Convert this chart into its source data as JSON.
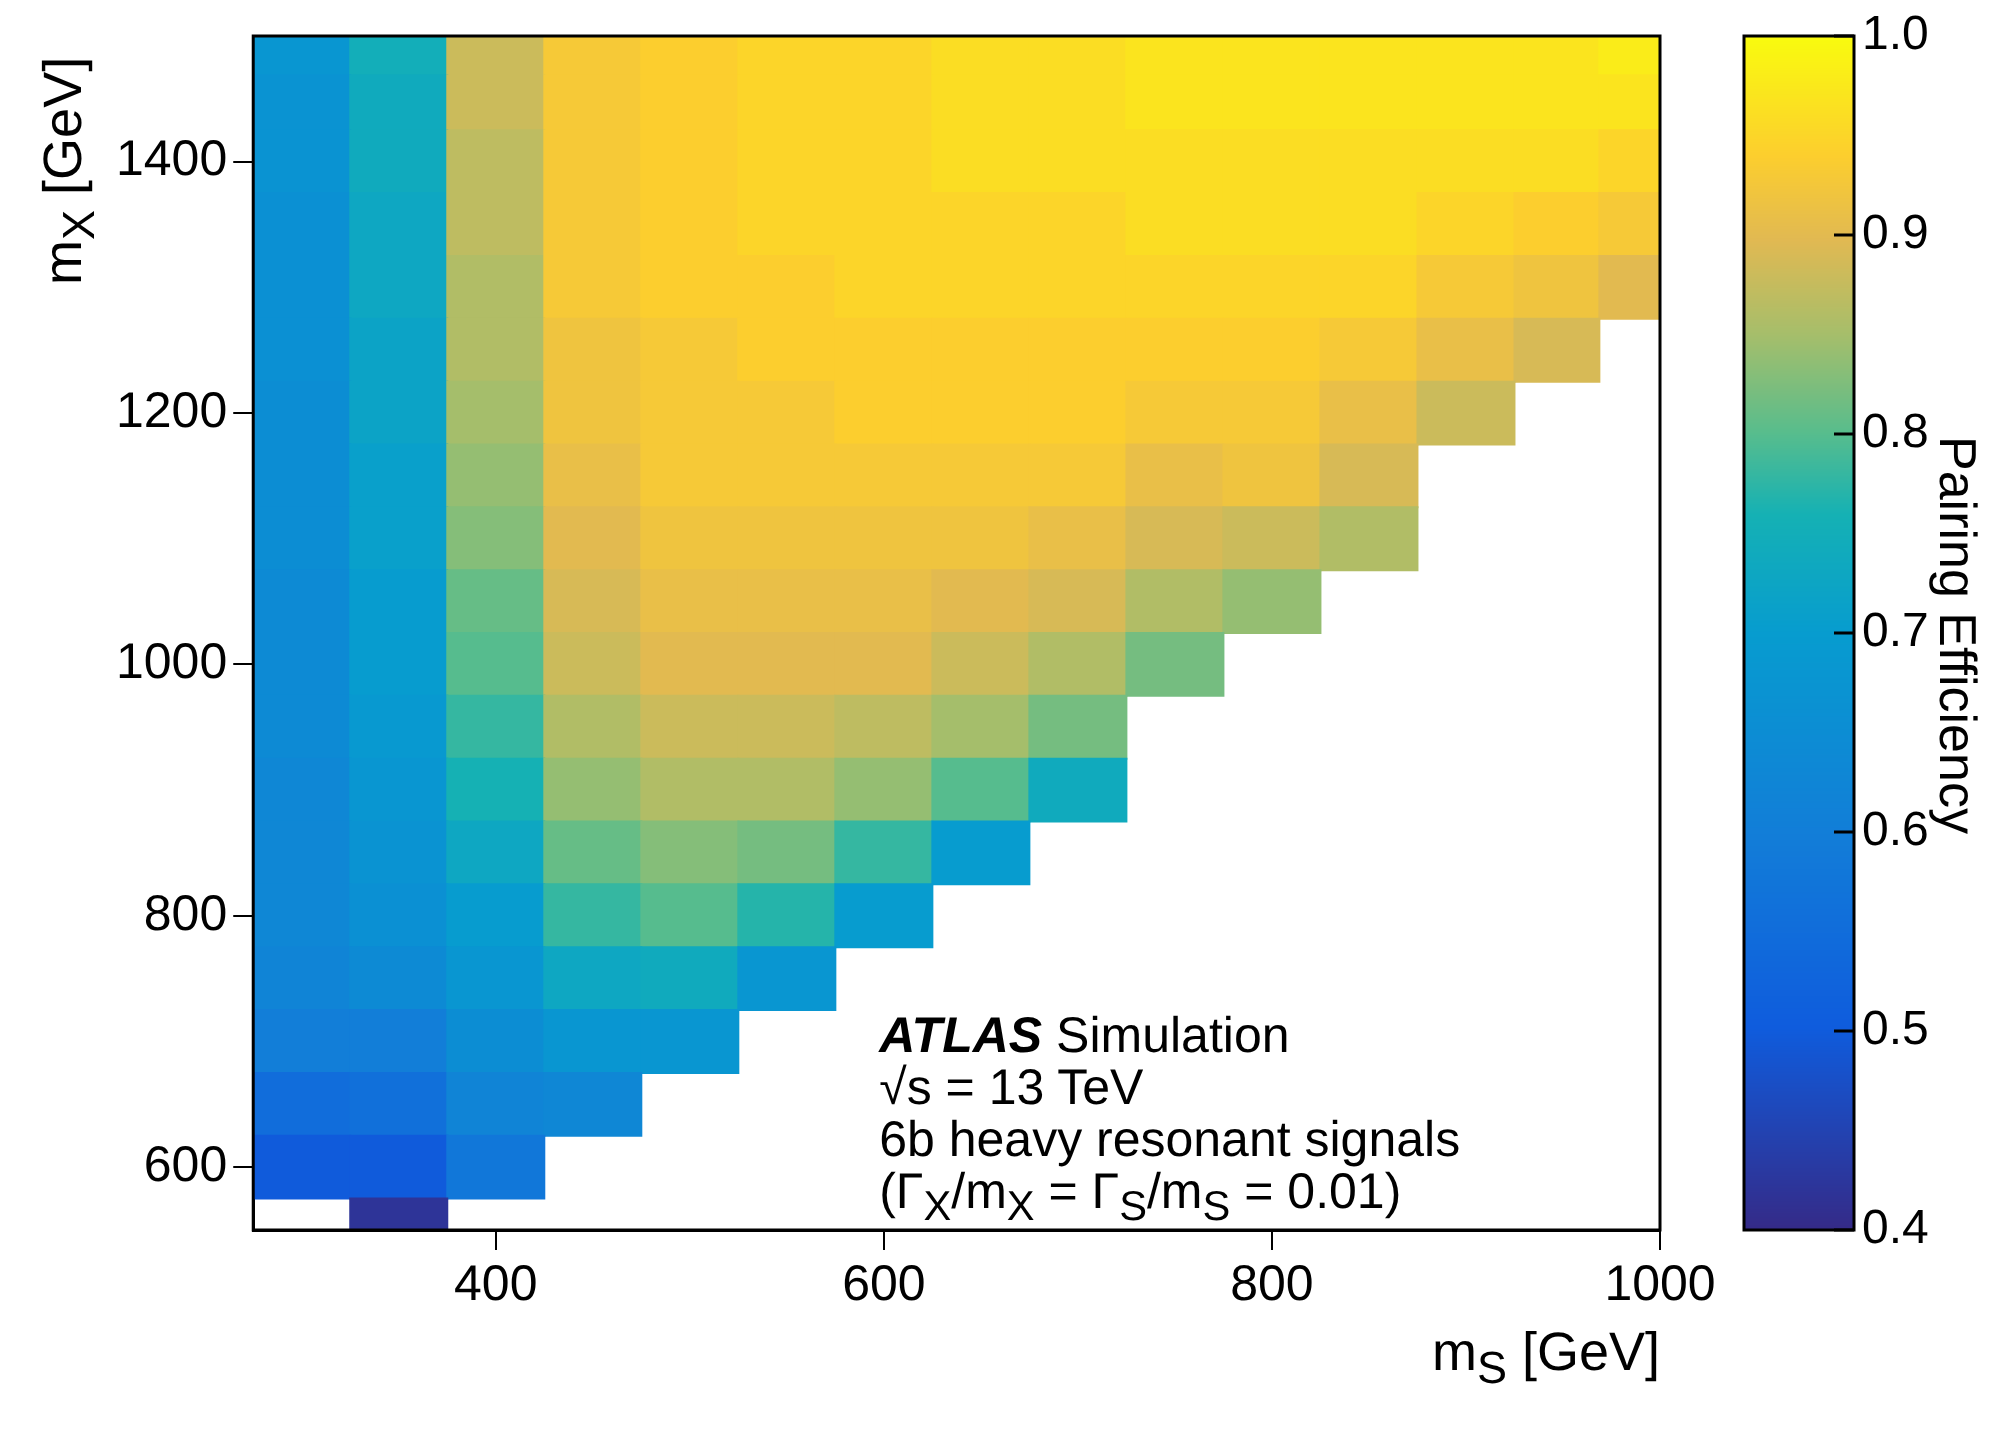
{
  "chart_data": {
    "type": "heatmap",
    "xlabel": "m$_{S}$ [GeV]",
    "ylabel": "m$_{X}$ [GeV]",
    "clabel": "Pairing Efficiency",
    "annotations": [
      "ATLAS Simulation",
      "√s = 13 TeV",
      "6b heavy resonant signals",
      "(Γ$_{X}$/m$_{X}$ = Γ$_{S}$/m$_{S}$ = 0.01)"
    ],
    "xlim": [
      275,
      1000
    ],
    "xticks": [
      400,
      600,
      800,
      1000
    ],
    "ylim": [
      550,
      1500
    ],
    "yticks": [
      600,
      800,
      1000,
      1200,
      1400
    ],
    "clim": [
      0.4,
      1.0
    ],
    "cticks": [
      0.4,
      0.5,
      0.6,
      0.7,
      0.8,
      0.9,
      {
        "value": 1.0,
        "label": "1.0"
      }
    ],
    "x": [
      300,
      350,
      400,
      450,
      500,
      550,
      600,
      650,
      700,
      750,
      800,
      850,
      900,
      950,
      987.5
    ],
    "y": [
      1487.5,
      1450,
      1400,
      1350,
      1300,
      1250,
      1200,
      1150,
      1100,
      1050,
      1000,
      950,
      900,
      850,
      800,
      750,
      700,
      650,
      600,
      550
    ],
    "cells": [
      [
        0.68,
        0.75,
        0.88,
        0.93,
        0.94,
        0.95,
        0.95,
        0.96,
        0.96,
        0.97,
        0.97,
        0.97,
        0.97,
        0.97,
        0.98
      ],
      [
        0.67,
        0.74,
        0.88,
        0.93,
        0.94,
        0.95,
        0.95,
        0.96,
        0.96,
        0.97,
        0.97,
        0.97,
        0.97,
        0.97,
        0.97
      ],
      [
        0.67,
        0.74,
        0.87,
        0.93,
        0.94,
        0.95,
        0.95,
        0.96,
        0.96,
        0.96,
        0.96,
        0.96,
        0.96,
        0.96,
        0.95
      ],
      [
        0.66,
        0.73,
        0.87,
        0.93,
        0.94,
        0.95,
        0.95,
        0.95,
        0.95,
        0.96,
        0.96,
        0.96,
        0.95,
        0.94,
        0.93
      ],
      [
        0.66,
        0.73,
        0.86,
        0.93,
        0.94,
        0.94,
        0.95,
        0.95,
        0.95,
        0.95,
        0.95,
        0.95,
        0.93,
        0.92,
        0.9
      ],
      [
        0.66,
        0.72,
        0.86,
        0.92,
        0.93,
        0.94,
        0.94,
        0.94,
        0.94,
        0.94,
        0.94,
        0.93,
        0.91,
        0.89,
        null
      ],
      [
        0.65,
        0.72,
        0.85,
        0.92,
        0.93,
        0.93,
        0.94,
        0.94,
        0.94,
        0.93,
        0.93,
        0.91,
        0.88,
        null,
        null
      ],
      [
        0.65,
        0.71,
        0.84,
        0.91,
        0.93,
        0.93,
        0.93,
        0.93,
        0.93,
        0.91,
        0.92,
        0.89,
        null,
        null,
        null
      ],
      [
        0.65,
        0.71,
        0.83,
        0.9,
        0.92,
        0.92,
        0.92,
        0.92,
        0.91,
        0.89,
        0.88,
        0.86,
        null,
        null,
        null
      ],
      [
        0.64,
        0.7,
        0.81,
        0.89,
        0.91,
        0.91,
        0.91,
        0.9,
        0.89,
        0.86,
        0.84,
        null,
        null,
        null,
        null
      ],
      [
        0.64,
        0.7,
        0.8,
        0.88,
        0.9,
        0.9,
        0.9,
        0.88,
        0.86,
        0.82,
        null,
        null,
        null,
        null,
        null
      ],
      [
        0.64,
        0.69,
        0.78,
        0.86,
        0.88,
        0.88,
        0.87,
        0.85,
        0.82,
        null,
        null,
        null,
        null,
        null,
        null
      ],
      [
        0.63,
        0.68,
        0.76,
        0.84,
        0.86,
        0.86,
        0.84,
        0.8,
        0.74,
        null,
        null,
        null,
        null,
        null,
        null
      ],
      [
        0.63,
        0.67,
        0.73,
        0.81,
        0.83,
        0.82,
        0.78,
        0.7,
        null,
        null,
        null,
        null,
        null,
        null,
        null
      ],
      [
        0.63,
        0.66,
        0.7,
        0.78,
        0.8,
        0.77,
        0.7,
        null,
        null,
        null,
        null,
        null,
        null,
        null,
        null
      ],
      [
        0.62,
        0.64,
        0.68,
        0.73,
        0.74,
        0.68,
        null,
        null,
        null,
        null,
        null,
        null,
        null,
        null,
        null
      ],
      [
        0.6,
        0.6,
        0.65,
        0.68,
        0.68,
        null,
        null,
        null,
        null,
        null,
        null,
        null,
        null,
        null,
        null
      ],
      [
        0.55,
        0.56,
        0.62,
        0.63,
        null,
        null,
        null,
        null,
        null,
        null,
        null,
        null,
        null,
        null,
        null
      ],
      [
        0.5,
        0.5,
        0.58,
        null,
        null,
        null,
        null,
        null,
        null,
        null,
        null,
        null,
        null,
        null,
        null
      ],
      [
        null,
        0.42,
        null,
        null,
        null,
        null,
        null,
        null,
        null,
        null,
        null,
        null,
        null,
        null,
        null
      ]
    ]
  }
}
